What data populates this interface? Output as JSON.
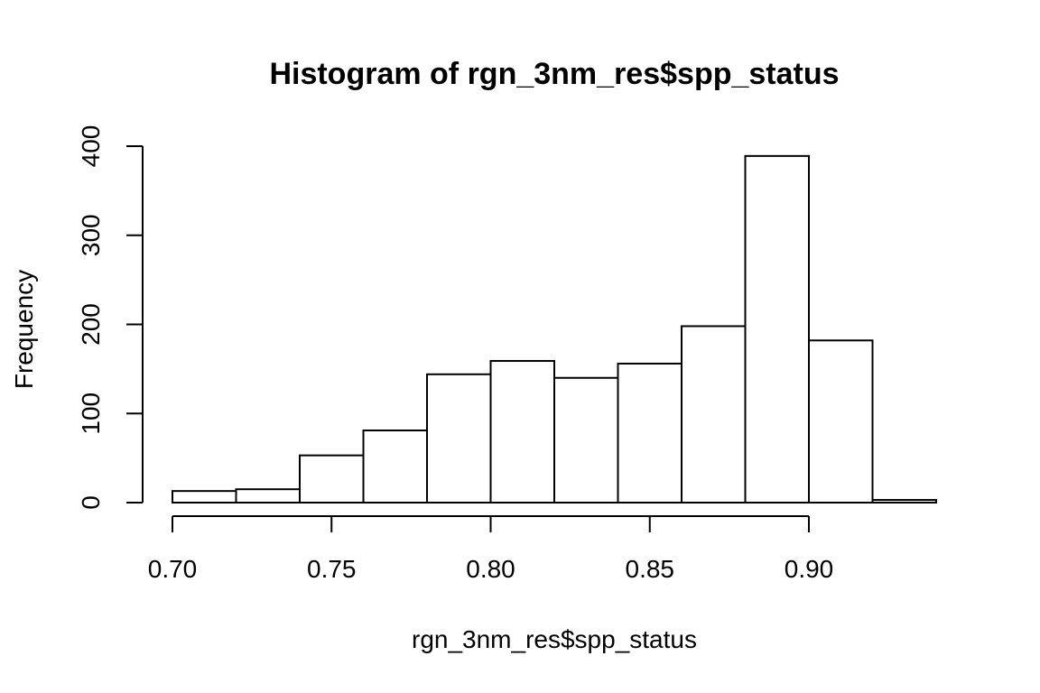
{
  "chart_data": {
    "type": "bar",
    "title": "Histogram of rgn_3nm_res$spp_status",
    "xlabel": "rgn_3nm_res$spp_status",
    "ylabel": "Frequency",
    "bins": [
      {
        "start": 0.7,
        "end": 0.72,
        "count": 13
      },
      {
        "start": 0.72,
        "end": 0.74,
        "count": 15
      },
      {
        "start": 0.74,
        "end": 0.76,
        "count": 53
      },
      {
        "start": 0.76,
        "end": 0.78,
        "count": 81
      },
      {
        "start": 0.78,
        "end": 0.8,
        "count": 144
      },
      {
        "start": 0.8,
        "end": 0.82,
        "count": 159
      },
      {
        "start": 0.82,
        "end": 0.84,
        "count": 140
      },
      {
        "start": 0.84,
        "end": 0.86,
        "count": 156
      },
      {
        "start": 0.86,
        "end": 0.88,
        "count": 198
      },
      {
        "start": 0.88,
        "end": 0.9,
        "count": 389
      },
      {
        "start": 0.9,
        "end": 0.92,
        "count": 182
      },
      {
        "start": 0.92,
        "end": 0.94,
        "count": 3
      }
    ],
    "xlim": [
      0.7,
      0.94
    ],
    "ylim": [
      0,
      400
    ],
    "x_ticks": [
      "0.70",
      "0.75",
      "0.80",
      "0.85",
      "0.90"
    ],
    "x_tick_values": [
      0.7,
      0.75,
      0.8,
      0.85,
      0.9
    ],
    "y_ticks": [
      "0",
      "100",
      "200",
      "300",
      "400"
    ],
    "y_tick_values": [
      0,
      100,
      200,
      300,
      400
    ],
    "grid": false,
    "legend": "none",
    "colors": {
      "bar_fill": "#ffffff",
      "bar_stroke": "#000000"
    }
  }
}
